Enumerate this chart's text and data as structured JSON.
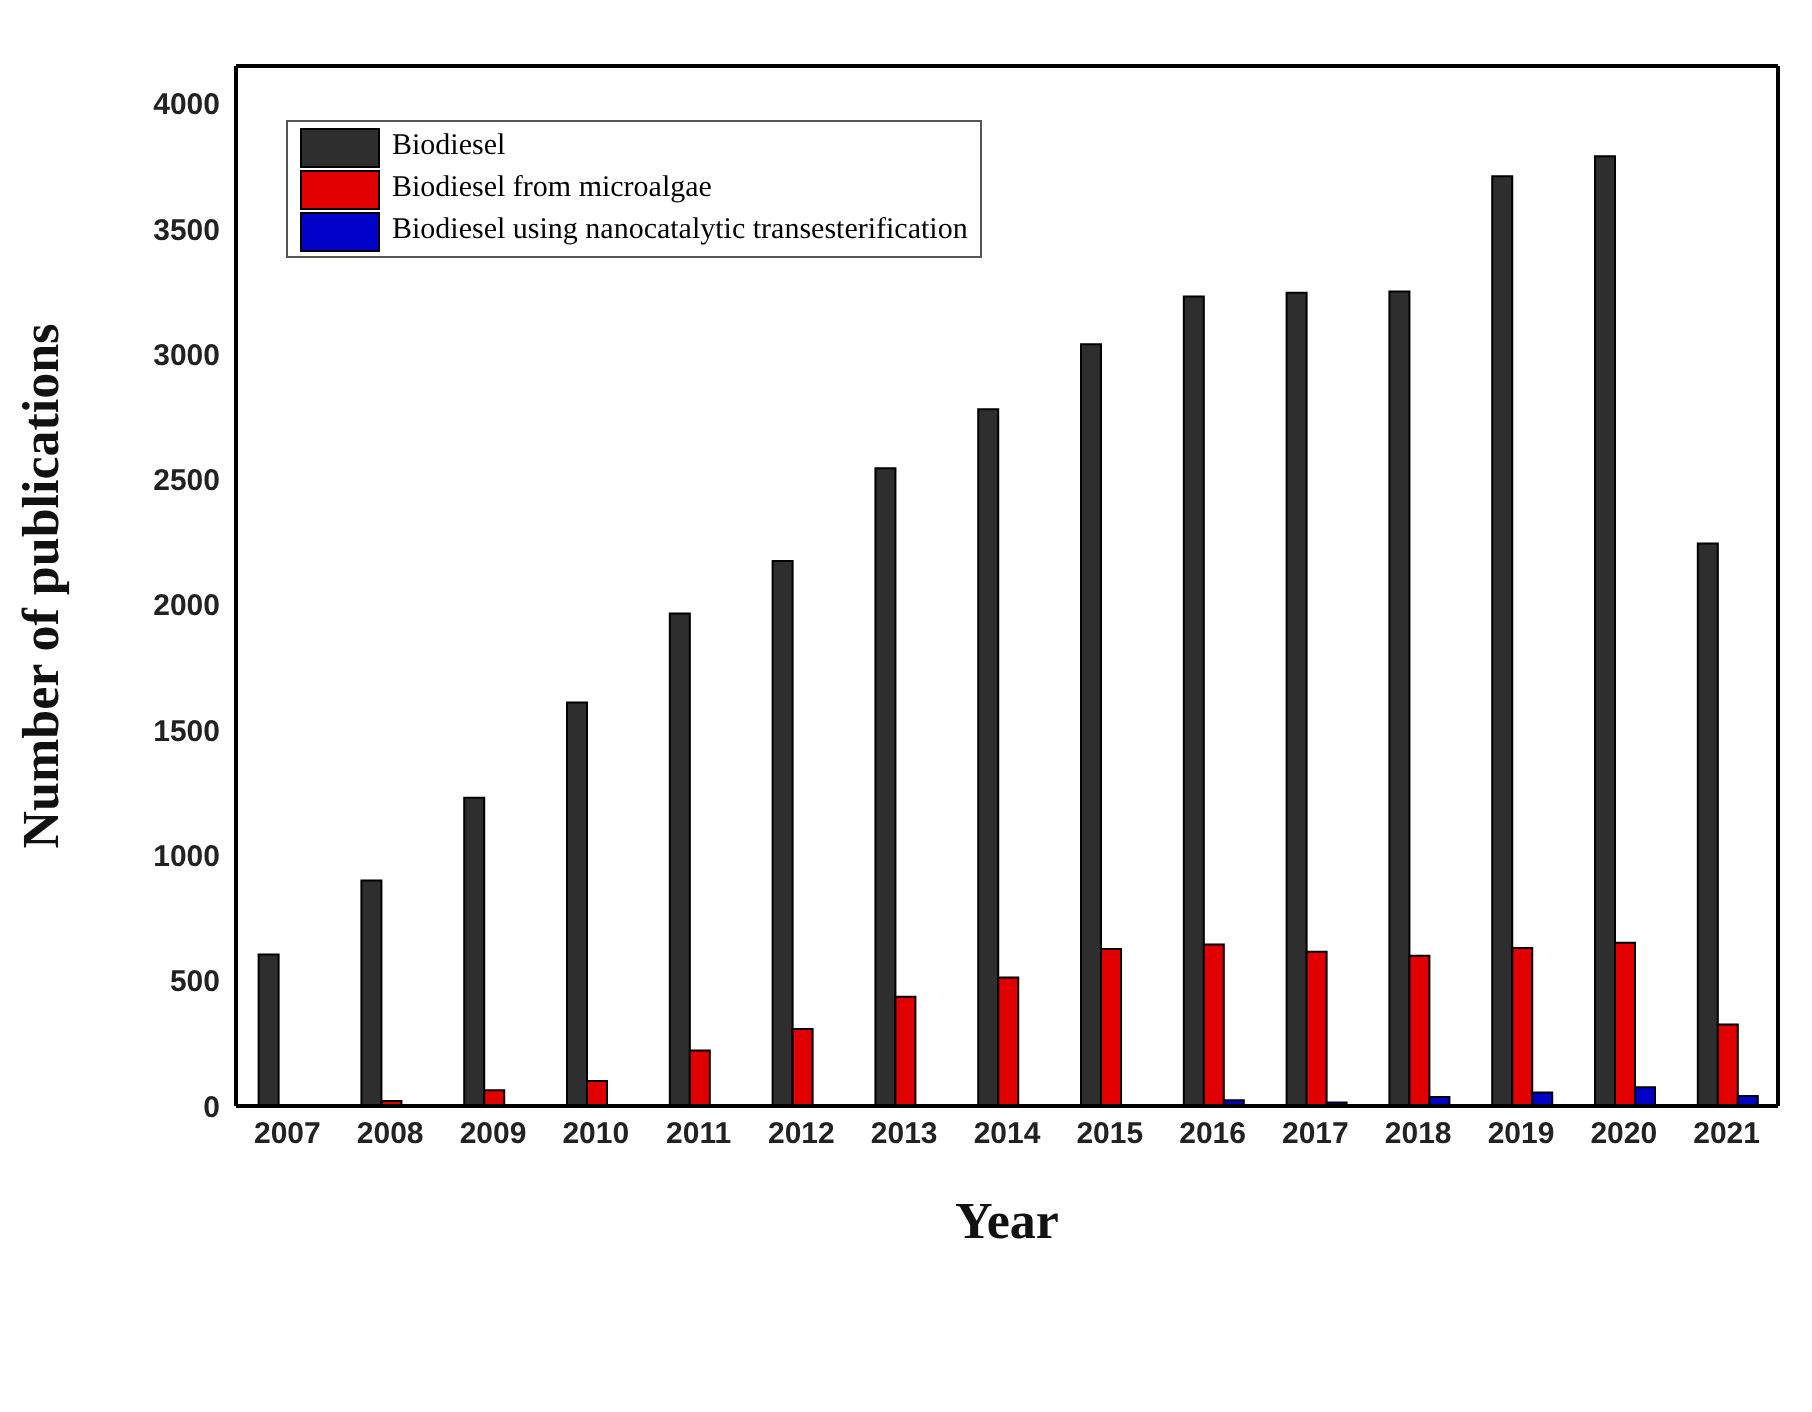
{
  "chart_data": {
    "type": "bar",
    "xlabel": "Year",
    "ylabel": "Number of publications",
    "categories": [
      "2007",
      "2008",
      "2009",
      "2010",
      "2011",
      "2012",
      "2013",
      "2014",
      "2015",
      "2016",
      "2017",
      "2018",
      "2019",
      "2020",
      "2021"
    ],
    "series": [
      {
        "name": "Biodiesel",
        "color": "#2e2e2e",
        "values": [
          605,
          900,
          1230,
          1610,
          1965,
          2175,
          2545,
          2780,
          3040,
          3230,
          3245,
          3250,
          3710,
          3790,
          2245
        ]
      },
      {
        "name": "Biodiesel from microalgae",
        "color": "#e00000",
        "values": [
          0,
          20,
          63,
          100,
          221,
          307,
          436,
          513,
          626,
          644,
          616,
          600,
          630,
          651,
          325
        ]
      },
      {
        "name": "Biodiesel using nanocatalytic transesterification",
        "color": "#0000c8",
        "values": [
          0,
          0,
          0,
          0,
          0,
          0,
          0,
          0,
          null,
          23,
          14,
          36,
          54,
          75,
          40
        ]
      }
    ],
    "ylim": [
      0,
      4150
    ],
    "yticks": [
      0,
      500,
      1000,
      1500,
      2000,
      2500,
      3000,
      3500,
      4000
    ],
    "grid": false,
    "legend": "top left"
  }
}
